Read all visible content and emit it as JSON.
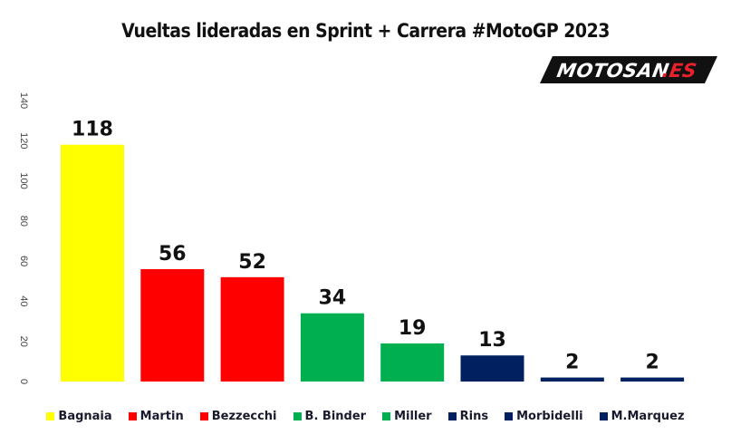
{
  "chart_data": {
    "type": "bar",
    "title": "Vueltas lideradas en Sprint + Carrera #MotoGP 2023",
    "categories": [
      "Bagnaia",
      "Martin",
      "Bezzecchi",
      "B. Binder",
      "Miller",
      "Rins",
      "Morbidelli",
      "M.Marquez"
    ],
    "values": [
      118,
      56,
      52,
      34,
      19,
      13,
      2,
      2
    ],
    "colors": [
      "#FFFF00",
      "#FF0000",
      "#FF0000",
      "#00B050",
      "#00B050",
      "#002060",
      "#002060",
      "#002060"
    ],
    "ylim": [
      0,
      140
    ],
    "yticks": [
      0,
      20,
      40,
      60,
      80,
      100,
      120,
      140
    ],
    "xlabel": "",
    "ylabel": "",
    "grid": false,
    "legend_position": "bottom",
    "data_labels": true
  },
  "logo": {
    "text_main": "MOTOSAN",
    "text_suffix": ".ES",
    "suffix_color": "#E8212B"
  }
}
